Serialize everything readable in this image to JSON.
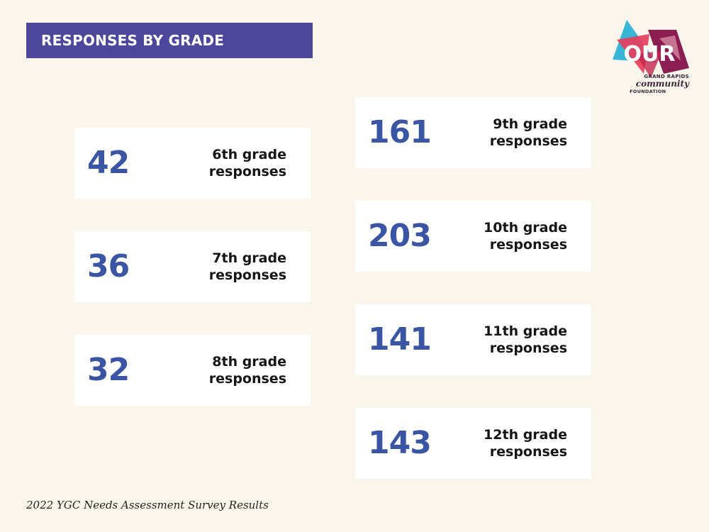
{
  "header": {
    "title": "RESPONSES BY GRADE"
  },
  "logo": {
    "mark": "OUR",
    "line1": "GRAND RAPIDS",
    "line2": "community",
    "line3": "FOUNDATION",
    "colors": [
      "#38b6d8",
      "#e83e5b",
      "#8c1d52",
      "#f5b9c4"
    ]
  },
  "cards_left": [
    {
      "value": "42",
      "label_line1": "6th grade",
      "label_line2": "responses"
    },
    {
      "value": "36",
      "label_line1": "7th grade",
      "label_line2": "responses"
    },
    {
      "value": "32",
      "label_line1": "8th grade",
      "label_line2": "responses"
    }
  ],
  "cards_right": [
    {
      "value": "161",
      "label_line1": "9th grade",
      "label_line2": "responses"
    },
    {
      "value": "203",
      "label_line1": "10th grade",
      "label_line2": "responses"
    },
    {
      "value": "141",
      "label_line1": "11th grade",
      "label_line2": "responses"
    },
    {
      "value": "143",
      "label_line1": "12th grade",
      "label_line2": "responses"
    }
  ],
  "footer": {
    "caption": "2022 YGC Needs Assessment Survey Results"
  },
  "colors": {
    "background": "#fbf6ec",
    "title_bar": "#4c479c",
    "number": "#3a55a4"
  }
}
